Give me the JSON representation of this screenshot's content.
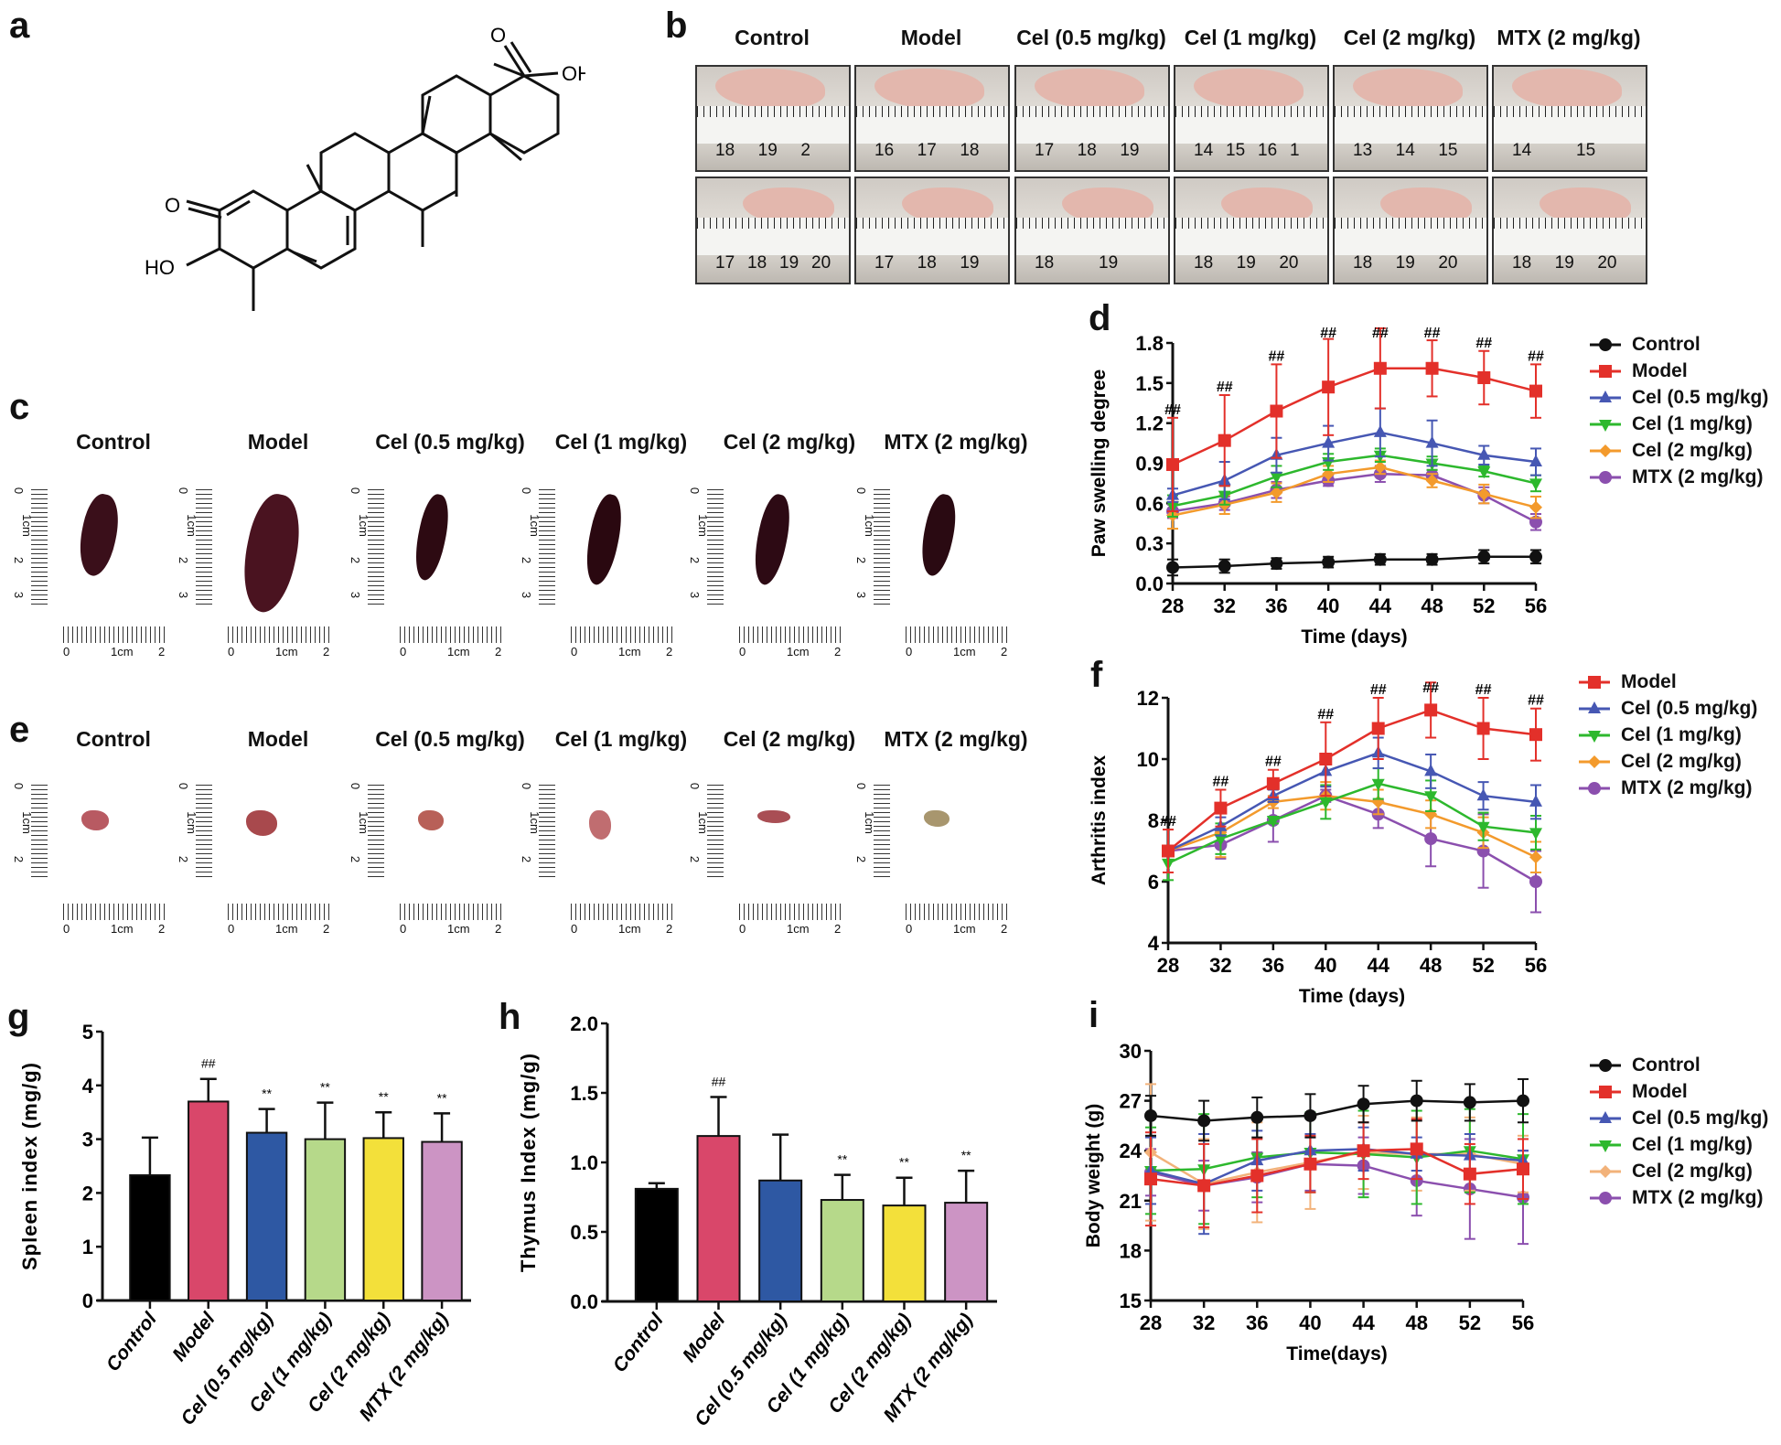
{
  "panel_labels": {
    "a": "a",
    "b": "b",
    "c": "c",
    "d": "d",
    "e": "e",
    "f": "f",
    "g": "g",
    "h": "h",
    "i": "i"
  },
  "molecule": {
    "atoms": [
      "O",
      "OH",
      "O",
      "HO"
    ]
  },
  "groups": [
    "Control",
    "Model",
    "Cel (0.5 mg/kg)",
    "Cel (1 mg/kg)",
    "Cel (2 mg/kg)",
    "MTX (2 mg/kg)"
  ],
  "colors": {
    "Control": "#111111",
    "Model": "#e3302a",
    "Cel (0.5 mg/kg)": "#4657b3",
    "Cel (1 mg/kg)": "#2db82d",
    "Cel (2 mg/kg)": "#f39a2c",
    "MTX (2 mg/kg)": "#8b4fae"
  },
  "bar_colors": [
    "#000000",
    "#d9476a",
    "#2e58a3",
    "#b6d98a",
    "#f3e03a",
    "#cc94c4"
  ],
  "paw_photos": {
    "top_row_ruler_numbers": [
      [
        "18",
        "19",
        "2"
      ],
      [
        "16",
        "17",
        "18"
      ],
      [
        "17",
        "18",
        "19"
      ],
      [
        "14",
        "15",
        "16",
        "1"
      ],
      [
        "13",
        "14",
        "15"
      ],
      [
        "14",
        "15"
      ]
    ],
    "bottom_row_ruler_numbers": [
      [
        "17",
        "18",
        "19",
        "20"
      ],
      [
        "17",
        "18",
        "19"
      ],
      [
        "18",
        "19"
      ],
      [
        "18",
        "19",
        "20"
      ],
      [
        "18",
        "19",
        "20"
      ],
      [
        "18",
        "19",
        "20"
      ]
    ]
  },
  "spleen_photos": {
    "vertical_ruler": [
      "0",
      "1cm",
      "2",
      "3"
    ],
    "horizontal_ruler": [
      "0",
      "1cm",
      "2"
    ]
  },
  "thymus_photos": {
    "vertical_ruler": [
      "0",
      "1cm",
      "2"
    ],
    "horizontal_ruler": [
      "0",
      "1cm",
      "2"
    ]
  },
  "chart_data": [
    {
      "id": "d",
      "type": "line",
      "xlabel": "Time (days)",
      "ylabel": "Paw swelling degree",
      "x": [
        28,
        32,
        36,
        40,
        44,
        48,
        52,
        56
      ],
      "xlim": [
        28,
        56
      ],
      "ylim": [
        0,
        1.8
      ],
      "yticks": [
        "0.0",
        "0.3",
        "0.6",
        "0.9",
        "1.2",
        "1.5",
        "1.8"
      ],
      "ytick_values": [
        0,
        0.3,
        0.6,
        0.9,
        1.2,
        1.5,
        1.8
      ],
      "legend": "right",
      "series": [
        {
          "name": "Control",
          "marker": "circle",
          "values": [
            0.12,
            0.13,
            0.15,
            0.16,
            0.18,
            0.18,
            0.2,
            0.2
          ],
          "error": [
            0.06,
            0.05,
            0.04,
            0.04,
            0.04,
            0.04,
            0.05,
            0.05
          ]
        },
        {
          "name": "Model",
          "marker": "square",
          "values": [
            0.89,
            1.07,
            1.29,
            1.47,
            1.61,
            1.61,
            1.54,
            1.44
          ],
          "error": [
            0.35,
            0.34,
            0.35,
            0.36,
            0.3,
            0.21,
            0.2,
            0.2
          ]
        },
        {
          "name": "Cel (0.5 mg/kg)",
          "marker": "triangle-up",
          "values": [
            0.66,
            0.77,
            0.96,
            1.05,
            1.13,
            1.05,
            0.96,
            0.91
          ],
          "error": [
            0.05,
            0.14,
            0.13,
            0.13,
            0.18,
            0.17,
            0.07,
            0.1
          ]
        },
        {
          "name": "Cel (1 mg/kg)",
          "marker": "triangle-down",
          "values": [
            0.58,
            0.66,
            0.8,
            0.91,
            0.96,
            0.9,
            0.84,
            0.75
          ],
          "error": [
            0.08,
            0.07,
            0.08,
            0.06,
            0.05,
            0.05,
            0.04,
            0.06
          ]
        },
        {
          "name": "Cel (2 mg/kg)",
          "marker": "diamond",
          "values": [
            0.51,
            0.59,
            0.68,
            0.82,
            0.87,
            0.77,
            0.67,
            0.57
          ],
          "error": [
            0.1,
            0.07,
            0.07,
            0.06,
            0.05,
            0.05,
            0.07,
            0.08
          ]
        },
        {
          "name": "MTX (2 mg/kg)",
          "marker": "hexagon",
          "values": [
            0.54,
            0.6,
            0.7,
            0.77,
            0.82,
            0.81,
            0.66,
            0.46
          ],
          "error": [
            0.05,
            0.05,
            0.06,
            0.04,
            0.06,
            0.04,
            0.06,
            0.06
          ]
        }
      ],
      "annotations": [
        "##",
        "##",
        "##",
        "##",
        "##",
        "##",
        "##",
        "##"
      ]
    },
    {
      "id": "f",
      "type": "line",
      "xlabel": "Time (days)",
      "ylabel": "Arthritis index",
      "x": [
        28,
        32,
        36,
        40,
        44,
        48,
        52,
        56
      ],
      "xlim": [
        28,
        56
      ],
      "ylim": [
        4,
        12
      ],
      "yticks": [
        "4",
        "6",
        "8",
        "10",
        "12"
      ],
      "ytick_values": [
        4,
        6,
        8,
        10,
        12
      ],
      "legend": "right",
      "series": [
        {
          "name": "Model",
          "marker": "square",
          "values": [
            7,
            8.4,
            9.2,
            10,
            11,
            11.6,
            11,
            10.8
          ],
          "error": [
            0.7,
            0.6,
            0.45,
            1.2,
            1.0,
            0.9,
            1.0,
            0.85
          ]
        },
        {
          "name": "Cel (0.5 mg/kg)",
          "marker": "triangle-up",
          "values": [
            7,
            7.8,
            8.8,
            9.6,
            10.2,
            9.6,
            8.8,
            8.6
          ],
          "error": [
            0.1,
            0.3,
            0.2,
            0.5,
            0.5,
            0.55,
            0.45,
            0.55
          ]
        },
        {
          "name": "Cel (1 mg/kg)",
          "marker": "triangle-down",
          "values": [
            6.6,
            7.4,
            8,
            8.6,
            9.2,
            8.8,
            7.8,
            7.6
          ],
          "error": [
            0.55,
            0.5,
            0.1,
            0.55,
            0.5,
            0.5,
            0.45,
            0.55
          ]
        },
        {
          "name": "Cel (2 mg/kg)",
          "marker": "diamond",
          "values": [
            7,
            7.6,
            8.6,
            8.8,
            8.6,
            8.2,
            7.6,
            6.8
          ],
          "error": [
            0.1,
            0.8,
            0.2,
            0.45,
            0.4,
            0.45,
            0.5,
            0.5
          ]
        },
        {
          "name": "MTX (2 mg/kg)",
          "marker": "hexagon",
          "values": [
            7,
            7.2,
            8,
            8.8,
            8.2,
            7.4,
            7,
            6
          ],
          "error": [
            0.1,
            0.45,
            0.7,
            0.2,
            0.45,
            0.9,
            1.2,
            1.0
          ]
        }
      ],
      "annotations": [
        "##",
        "##",
        "##",
        "##",
        "##",
        "##",
        "##",
        "##"
      ]
    },
    {
      "id": "i",
      "type": "line",
      "xlabel": "Time(days)",
      "ylabel": "Body weight (g)",
      "x": [
        28,
        32,
        36,
        40,
        44,
        48,
        52,
        56
      ],
      "xlim": [
        28,
        56
      ],
      "ylim": [
        15,
        30
      ],
      "yticks": [
        "15",
        "18",
        "21",
        "24",
        "27",
        "30"
      ],
      "ytick_values": [
        15,
        18,
        21,
        24,
        27,
        30
      ],
      "legend": "right",
      "series": [
        {
          "name": "Control",
          "marker": "circle",
          "values": [
            26.1,
            25.8,
            26,
            26.1,
            26.8,
            27,
            26.9,
            27
          ],
          "error": [
            1.2,
            1.2,
            1.2,
            1.3,
            1.1,
            1.2,
            1.1,
            1.3
          ]
        },
        {
          "name": "Model",
          "marker": "square",
          "values": [
            22.3,
            21.9,
            22.5,
            23.2,
            24,
            24.1,
            22.6,
            22.9
          ],
          "error": [
            2.8,
            2.5,
            2.2,
            1.7,
            1.7,
            1.8,
            1.8,
            1.8
          ]
        },
        {
          "name": "Cel (0.5 mg/kg)",
          "marker": "triangle-up",
          "values": [
            22.8,
            22,
            23.4,
            24,
            24.1,
            23.8,
            23.7,
            23.4
          ],
          "error": [
            2,
            3,
            1.8,
            1,
            1.3,
            1,
            1.3,
            0.6
          ]
        },
        {
          "name": "Cel (1 mg/kg)",
          "marker": "triangle-down",
          "values": [
            22.8,
            22.9,
            23.6,
            23.9,
            23.8,
            23.6,
            24,
            23.5
          ],
          "error": [
            2.6,
            3.3,
            2.4,
            2.4,
            2.6,
            2.8,
            2.5,
            2.7
          ]
        },
        {
          "name": "Cel (2 mg/kg)",
          "marker": "diamond",
          "values": [
            23.9,
            22,
            22.7,
            23.3,
            23.9,
            23.8,
            23.8,
            23.2
          ],
          "error": [
            4.1,
            2.7,
            3,
            2.8,
            2.2,
            2.2,
            2.2,
            1.7
          ],
          "color": "#f2b27a"
        },
        {
          "name": "MTX (2 mg/kg)",
          "marker": "hexagon",
          "values": [
            22.7,
            21.9,
            22.4,
            23.2,
            23.1,
            22.2,
            21.7,
            21.2
          ],
          "error": [
            1.4,
            1.5,
            1.5,
            1.6,
            1.7,
            2.1,
            3,
            2.8
          ]
        }
      ]
    },
    {
      "id": "g",
      "type": "bar",
      "ylabel": "Spleen index (mg/g)",
      "categories": [
        "Control",
        "Model",
        "Cel (0.5 mg/kg)",
        "Cel (1 mg/kg)",
        "Cel (2 mg/kg)",
        "MTX (2 mg/kg)"
      ],
      "values": [
        2.33,
        3.7,
        3.12,
        3.0,
        3.02,
        2.95
      ],
      "error": [
        0.7,
        0.42,
        0.44,
        0.68,
        0.48,
        0.53
      ],
      "annotations": [
        "",
        "##",
        "**",
        "**",
        "**",
        "**"
      ],
      "ylim": [
        0,
        5
      ],
      "yticks": [
        "0",
        "1",
        "2",
        "3",
        "4",
        "5"
      ],
      "ytick_values": [
        0,
        1,
        2,
        3,
        4,
        5
      ]
    },
    {
      "id": "h",
      "type": "bar",
      "ylabel": "Thymus Index (mg/g)",
      "categories": [
        "Control",
        "Model",
        "Cel (0.5 mg/kg)",
        "Cel (1 mg/kg)",
        "Cel (2 mg/kg)",
        "MTX (2 mg/kg)"
      ],
      "values": [
        0.81,
        1.19,
        0.87,
        0.73,
        0.69,
        0.71
      ],
      "error": [
        0.04,
        0.28,
        0.33,
        0.18,
        0.2,
        0.23
      ],
      "annotations": [
        "",
        "##",
        "",
        "**",
        "**",
        "**"
      ],
      "ylim": [
        0,
        2
      ],
      "yticks": [
        "0.0",
        "0.5",
        "1.0",
        "1.5",
        "2.0"
      ],
      "ytick_values": [
        0,
        0.5,
        1,
        1.5,
        2
      ]
    }
  ]
}
